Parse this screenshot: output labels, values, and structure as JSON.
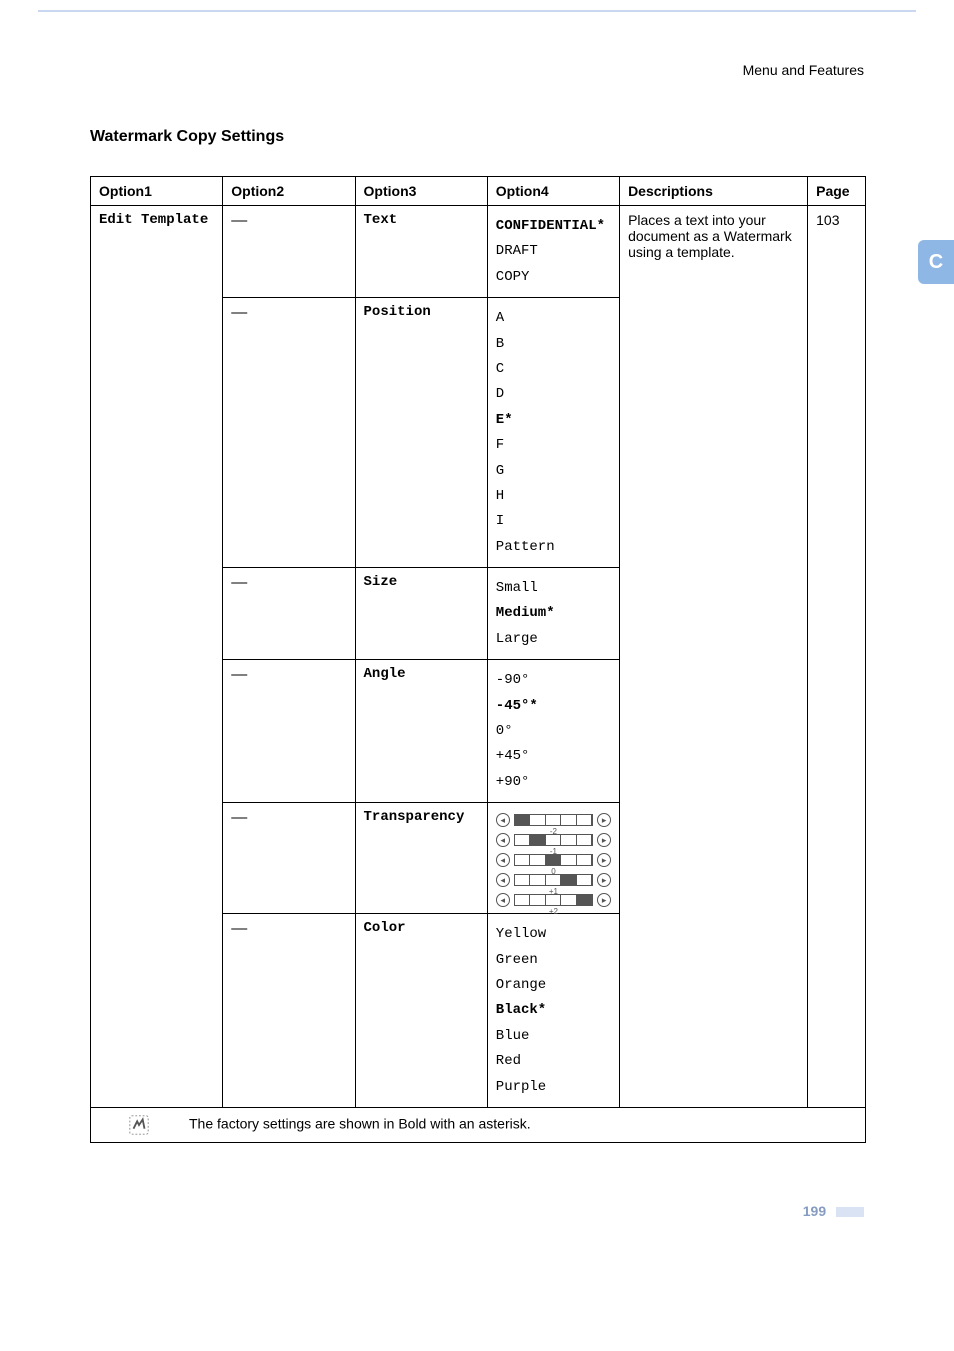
{
  "page": {
    "header": "Menu and Features",
    "section_title": "Watermark Copy Settings",
    "side_tab": "C",
    "page_number": "199"
  },
  "colors": {
    "accent_blue": "#8fb7e6",
    "rule_blue": "#c9d8f0",
    "page_num": "#869cc2",
    "page_bar": "#d9e3f3",
    "text": "#000000",
    "bg": "#ffffff"
  },
  "table": {
    "headers": {
      "c1": "Option1",
      "c2": "Option2",
      "c3": "Option3",
      "c4": "Option4",
      "c5": "Descriptions",
      "c6": "Page"
    },
    "option1": "Edit Template",
    "description": "Places a text into your document as a Watermark using a template.",
    "page_ref": "103",
    "dash": "—",
    "rows": [
      {
        "option3": "Text",
        "option4": [
          {
            "label": "CONFIDENTIAL*",
            "bold": true
          },
          {
            "label": "DRAFT",
            "bold": false
          },
          {
            "label": "COPY",
            "bold": false
          }
        ]
      },
      {
        "option3": "Position",
        "option4": [
          {
            "label": "A",
            "bold": false
          },
          {
            "label": "B",
            "bold": false
          },
          {
            "label": "C",
            "bold": false
          },
          {
            "label": "D",
            "bold": false
          },
          {
            "label": "E*",
            "bold": true
          },
          {
            "label": "F",
            "bold": false
          },
          {
            "label": "G",
            "bold": false
          },
          {
            "label": "H",
            "bold": false
          },
          {
            "label": "I",
            "bold": false
          },
          {
            "label": "Pattern",
            "bold": false
          }
        ]
      },
      {
        "option3": "Size",
        "option4": [
          {
            "label": "Small",
            "bold": false
          },
          {
            "label": "Medium*",
            "bold": true
          },
          {
            "label": "Large",
            "bold": false
          }
        ]
      },
      {
        "option3": "Angle",
        "option4": [
          {
            "label": "-90°",
            "bold": false
          },
          {
            "label": "-45°*",
            "bold": true
          },
          {
            "label": "0°",
            "bold": false
          },
          {
            "label": "+45°",
            "bold": false
          },
          {
            "label": "+90°",
            "bold": false
          }
        ]
      },
      {
        "option3": "Transparency",
        "transparency_levels": [
          {
            "filled_index": 0,
            "label": "-2"
          },
          {
            "filled_index": 1,
            "label": "-1"
          },
          {
            "filled_index": 2,
            "label": "0"
          },
          {
            "filled_index": 3,
            "label": "+1"
          },
          {
            "filled_index": 4,
            "label": "+2"
          }
        ]
      },
      {
        "option3": "Color",
        "option4": [
          {
            "label": "Yellow",
            "bold": false
          },
          {
            "label": "Green",
            "bold": false
          },
          {
            "label": "Orange",
            "bold": false
          },
          {
            "label": "Black*",
            "bold": true
          },
          {
            "label": "Blue",
            "bold": false
          },
          {
            "label": "Red",
            "bold": false
          },
          {
            "label": "Purple",
            "bold": false
          }
        ]
      }
    ],
    "footnote": "The factory settings are shown in Bold with an asterisk."
  }
}
